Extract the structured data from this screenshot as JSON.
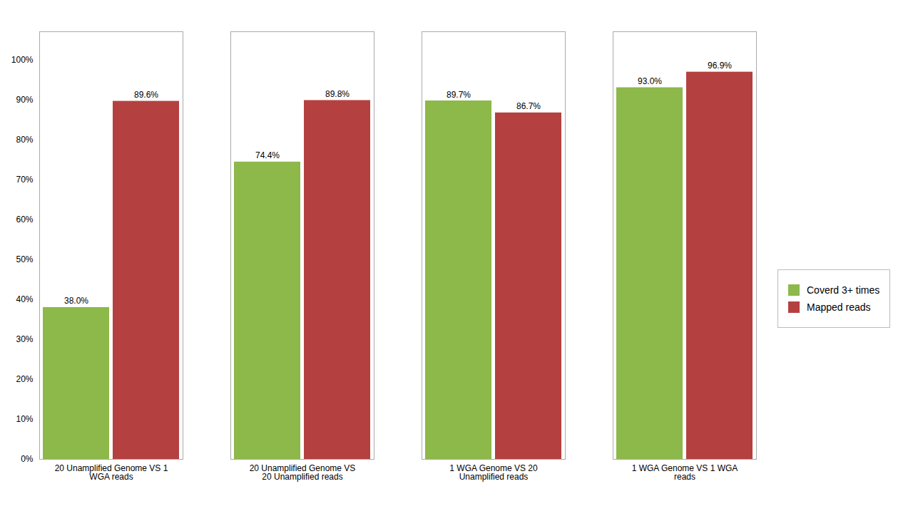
{
  "chart_data": {
    "type": "bar",
    "categories": [
      "20 Unamplified Genome VS 1\nWGA reads",
      "20 Unamplified Genome VS\n20 Unamplified reads",
      "1 WGA Genome VS 20\nUnamplified reads",
      "1 WGA Genome VS 1 WGA\nreads"
    ],
    "series": [
      {
        "name": "Coverd 3+ times",
        "color": "#8DB84A",
        "values": [
          38.0,
          74.4,
          89.7,
          93.0
        ],
        "value_labels": [
          "38.0%",
          "74.4%",
          "89.7%",
          "93.0%"
        ]
      },
      {
        "name": "Mapped reads",
        "color": "#B54040",
        "values": [
          89.6,
          89.8,
          86.7,
          96.9
        ],
        "value_labels": [
          "89.6%",
          "89.8%",
          "86.7%",
          "96.9%"
        ]
      }
    ],
    "ylim": [
      0,
      107
    ],
    "yticks": [
      {
        "value": 0,
        "label": "0%"
      },
      {
        "value": 10,
        "label": "10%"
      },
      {
        "value": 20,
        "label": "20%"
      },
      {
        "value": 30,
        "label": "30%"
      },
      {
        "value": 40,
        "label": "40%"
      },
      {
        "value": 50,
        "label": "50%"
      },
      {
        "value": 60,
        "label": "60%"
      },
      {
        "value": 70,
        "label": "70%"
      },
      {
        "value": 80,
        "label": "80%"
      },
      {
        "value": 90,
        "label": "90%"
      },
      {
        "value": 100,
        "label": "100%"
      }
    ],
    "grid": false,
    "legend": "right",
    "data_labels": true
  }
}
